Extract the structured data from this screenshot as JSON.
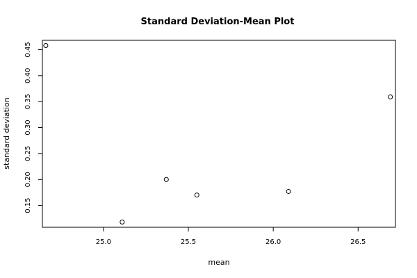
{
  "chart_data": {
    "type": "scatter",
    "title": "Standard Deviation-Mean Plot",
    "xlabel": "mean",
    "ylabel": "standard deviation",
    "xlim": [
      24.64,
      26.72
    ],
    "ylim": [
      0.108,
      0.468
    ],
    "x_ticks": [
      25.0,
      25.5,
      26.0,
      26.5
    ],
    "x_tick_labels": [
      "25.0",
      "25.5",
      "26.0",
      "26.5"
    ],
    "y_ticks": [
      0.15,
      0.2,
      0.25,
      0.3,
      0.35,
      0.4,
      0.45
    ],
    "y_tick_labels": [
      "0.15",
      "0.20",
      "0.25",
      "0.30",
      "0.35",
      "0.40",
      "0.45"
    ],
    "points": [
      {
        "x": 24.66,
        "y": 0.458
      },
      {
        "x": 25.11,
        "y": 0.118
      },
      {
        "x": 25.37,
        "y": 0.2
      },
      {
        "x": 25.55,
        "y": 0.17
      },
      {
        "x": 26.09,
        "y": 0.177
      },
      {
        "x": 26.69,
        "y": 0.359
      }
    ],
    "grid": false,
    "legend": "none"
  }
}
